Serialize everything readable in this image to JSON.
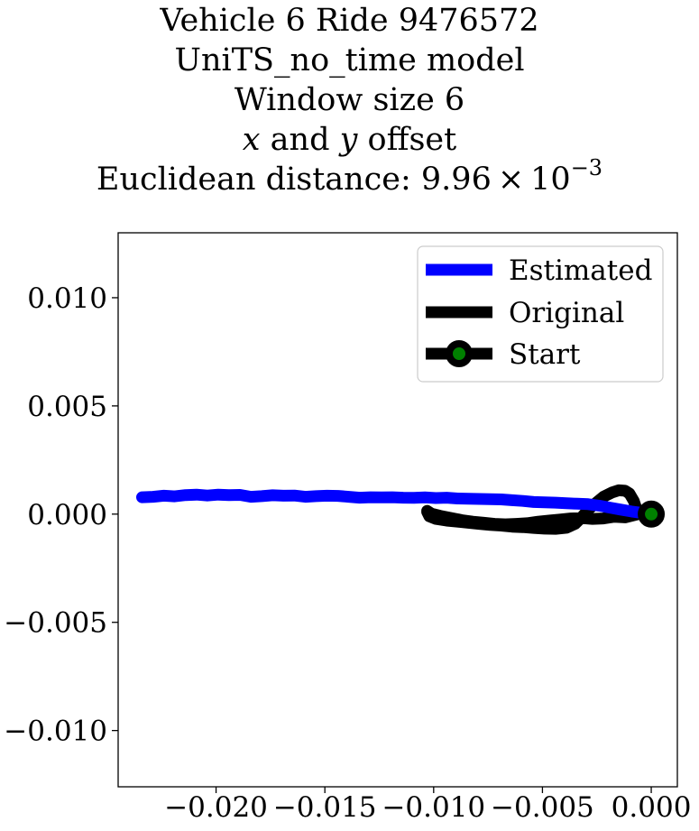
{
  "title": {
    "line1": "Vehicle 6 Ride 9476572",
    "line2": "UniTS_no_time model",
    "line3": "Window size 6",
    "line4_var_x": "x",
    "line4_and": " and ",
    "line4_var_y": "y",
    "line4_rest": " offset",
    "line5_prefix": "Euclidean distance: 9.96 × 10",
    "line5_exp": "−3"
  },
  "chart_data": {
    "type": "line",
    "title": "Vehicle 6 Ride 9476572 / UniTS_no_time model / Window size 6 / x and y offset / Euclidean distance: 9.96×10^-3",
    "xlabel": "",
    "ylabel": "",
    "xlim": [
      -0.0245,
      0.0012
    ],
    "ylim": [
      -0.0126,
      0.013
    ],
    "grid": false,
    "legend_position": "top-right",
    "x_ticks": [
      -0.02,
      -0.015,
      -0.01,
      -0.005,
      0.0
    ],
    "x_tick_labels": [
      "−0.020",
      "−0.015",
      "−0.010",
      "−0.005",
      "0.000"
    ],
    "y_ticks": [
      0.01,
      0.005,
      0.0,
      -0.005,
      -0.01
    ],
    "y_tick_labels": [
      "0.010",
      "0.005",
      "0.000",
      "−0.005",
      "−0.010"
    ],
    "series": [
      {
        "name": "Estimated",
        "color": "#0000ff",
        "x": [
          -0.0234,
          -0.0229,
          -0.0224,
          -0.0219,
          -0.0214,
          -0.0209,
          -0.0204,
          -0.0199,
          -0.0194,
          -0.0189,
          -0.0184,
          -0.0179,
          -0.0174,
          -0.0169,
          -0.0164,
          -0.0159,
          -0.0154,
          -0.0149,
          -0.0144,
          -0.0139,
          -0.0134,
          -0.0129,
          -0.0124,
          -0.0119,
          -0.0114,
          -0.0109,
          -0.0104,
          -0.0099,
          -0.0094,
          -0.0089,
          -0.0084,
          -0.0079,
          -0.0074,
          -0.0069,
          -0.0064,
          -0.0059,
          -0.0054,
          -0.0049,
          -0.0044,
          -0.0039,
          -0.0034,
          -0.0029,
          -0.0024,
          -0.0019,
          -0.0014,
          -0.0009,
          -0.0004,
          0.0
        ],
        "y": [
          0.00078,
          0.0008,
          0.00085,
          0.00082,
          0.00088,
          0.0009,
          0.00086,
          0.0009,
          0.00088,
          0.00089,
          0.0008,
          0.00083,
          0.00087,
          0.00085,
          0.00086,
          0.0008,
          0.00083,
          0.00085,
          0.00084,
          0.0008,
          0.00076,
          0.00078,
          0.00077,
          0.00078,
          0.00076,
          0.00075,
          0.00077,
          0.00074,
          0.00076,
          0.00072,
          0.00071,
          0.0007,
          0.00069,
          0.00068,
          0.00064,
          0.00061,
          0.00056,
          0.00054,
          0.00053,
          0.0005,
          0.00048,
          0.00046,
          0.00039,
          0.0003,
          0.00021,
          0.00012,
          5e-05,
          0.0
        ]
      },
      {
        "name": "Original",
        "color": "#000000",
        "x": [
          -0.0103,
          -0.0102,
          -0.0099,
          -0.0094,
          -0.0089,
          -0.0084,
          -0.0079,
          -0.0074,
          -0.0069,
          -0.0064,
          -0.0059,
          -0.0054,
          -0.0049,
          -0.0044,
          -0.0039,
          -0.0035,
          -0.0032,
          -0.0029,
          -0.0025,
          -0.0022,
          -0.0018,
          -0.0015,
          -0.0012,
          -0.001,
          -0.0008,
          -0.0006,
          -0.0012,
          -0.0017,
          -0.0022,
          -0.0027,
          -0.0032,
          -0.0037,
          -0.0042,
          -0.0047,
          -0.0052,
          -0.0057,
          -0.0062,
          -0.0067,
          -0.0072,
          -0.0077,
          -0.0082,
          -0.0087,
          -0.0092,
          -0.0097,
          -0.0101,
          -0.0103
        ],
        "y": [
          0.0001,
          -0.0001,
          -0.00022,
          -0.0003,
          -0.00035,
          -0.0004,
          -0.00045,
          -0.0005,
          -0.00053,
          -0.00058,
          -0.0006,
          -0.00064,
          -0.00067,
          -0.00068,
          -0.00063,
          -0.00045,
          -0.00015,
          0.0002,
          0.00055,
          0.0008,
          0.001,
          0.0011,
          0.00108,
          0.00095,
          0.0006,
          0.0,
          -0.00015,
          -0.00012,
          -0.0002,
          -0.00022,
          -0.00018,
          -0.0002,
          -0.00025,
          -0.0003,
          -0.00035,
          -0.00042,
          -0.00045,
          -0.00047,
          -0.00045,
          -0.0004,
          -0.00035,
          -0.00028,
          -0.00018,
          -8e-05,
          2e-05,
          0.00015
        ]
      },
      {
        "name": "Start",
        "color": "#000000",
        "marker_face": "#008000",
        "x": [
          0.0
        ],
        "y": [
          0.0
        ]
      }
    ]
  }
}
